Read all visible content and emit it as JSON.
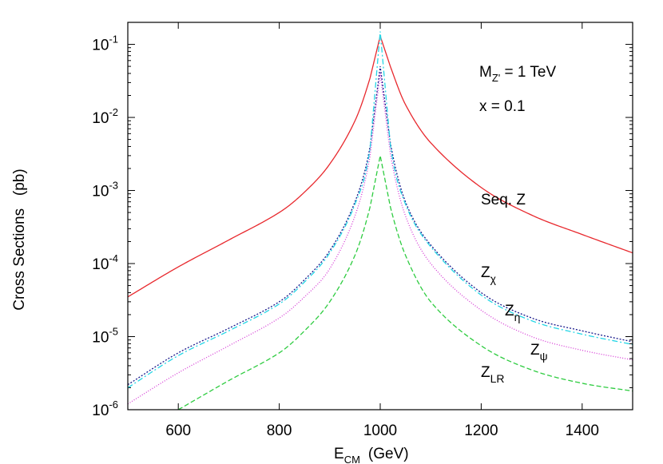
{
  "chart_data": {
    "type": "line",
    "xlabel": {
      "base": "E",
      "sub": "CM",
      "rest": "(GeV)"
    },
    "ylabel": "Cross Sections   (pb)",
    "xlim": [
      500,
      1500
    ],
    "ylim": [
      1e-06,
      0.2
    ],
    "yscale": "log",
    "x_ticks": [
      600,
      800,
      1000,
      1200,
      1400
    ],
    "y_ticks": [
      {
        "base": "10",
        "exp": "-6",
        "value": 1e-06
      },
      {
        "base": "10",
        "exp": "-5",
        "value": 1e-05
      },
      {
        "base": "10",
        "exp": "-4",
        "value": 0.0001
      },
      {
        "base": "10",
        "exp": "-3",
        "value": 0.001
      },
      {
        "base": "10",
        "exp": "-2",
        "value": 0.01
      },
      {
        "base": "10",
        "exp": "-1",
        "value": 0.1
      }
    ],
    "annotations": {
      "mass": {
        "base": "M",
        "sub": "Z'",
        "rest": " = 1 TeV"
      },
      "x_param": "x = 0.1"
    },
    "series": [
      {
        "name": "Seq. Z",
        "label_base": "Seq. Z",
        "label_sub": "",
        "color": "#e8282d",
        "dash": "",
        "x": [
          500,
          600,
          700,
          800,
          850,
          900,
          950,
          980,
          1000,
          1020,
          1050,
          1100,
          1200,
          1300,
          1400,
          1500
        ],
        "y": [
          3.5e-05,
          9e-05,
          0.00021,
          0.0005,
          0.00095,
          0.0023,
          0.009,
          0.035,
          0.13,
          0.05,
          0.015,
          0.0045,
          0.0011,
          0.00046,
          0.00025,
          0.00014
        ]
      },
      {
        "name": "Z_chi",
        "label_base": "Z",
        "label_sub": "χ",
        "color": "#1a1a8c",
        "dash": "2,2",
        "x": [
          500,
          600,
          700,
          800,
          850,
          900,
          950,
          980,
          1000,
          1020,
          1050,
          1100,
          1200,
          1300,
          1400,
          1500
        ],
        "y": [
          2.2e-06,
          6e-06,
          1.3e-05,
          3e-05,
          6e-05,
          0.00015,
          0.0007,
          0.004,
          0.05,
          0.0045,
          0.0007,
          0.00018,
          4e-05,
          1.8e-05,
          1.2e-05,
          8.5e-06
        ]
      },
      {
        "name": "Z_eta",
        "label_base": "Z",
        "label_sub": "η",
        "color": "#25d6e6",
        "dash": "7,3,2,3",
        "x": [
          500,
          600,
          700,
          800,
          850,
          900,
          950,
          980,
          1000,
          1020,
          1050,
          1100,
          1200,
          1300,
          1400,
          1500
        ],
        "y": [
          2e-06,
          5.5e-06,
          1.2e-05,
          2.8e-05,
          5.6e-05,
          0.00014,
          0.00065,
          0.0038,
          0.15,
          0.0042,
          0.00065,
          0.00017,
          3.7e-05,
          1.65e-05,
          1.08e-05,
          7.8e-06
        ]
      },
      {
        "name": "Z_psi",
        "label_base": "Z",
        "label_sub": "ψ",
        "color": "#d63ad6",
        "dash": "1,2",
        "x": [
          500,
          600,
          700,
          800,
          850,
          900,
          950,
          980,
          1000,
          1020,
          1050,
          1100,
          1200,
          1300,
          1400,
          1500
        ],
        "y": [
          1.2e-06,
          3.2e-06,
          7.5e-06,
          1.8e-05,
          3.5e-05,
          8.5e-05,
          0.00045,
          0.003,
          0.04,
          0.0032,
          0.00045,
          0.0001,
          2.3e-05,
          1e-05,
          6.5e-06,
          4.8e-06
        ]
      },
      {
        "name": "Z_LR",
        "label_base": "Z",
        "label_sub": "LR",
        "color": "#2ecc40",
        "dash": "6,3",
        "x": [
          600,
          700,
          800,
          850,
          900,
          950,
          980,
          1000,
          1020,
          1050,
          1100,
          1200,
          1300,
          1400,
          1500
        ],
        "y": [
          1e-06,
          2.5e-06,
          6e-06,
          1.2e-05,
          3e-05,
          0.00013,
          0.0006,
          0.003,
          0.0006,
          0.00013,
          3e-05,
          7.5e-06,
          3.5e-06,
          2.3e-06,
          1.8e-06
        ]
      }
    ]
  }
}
